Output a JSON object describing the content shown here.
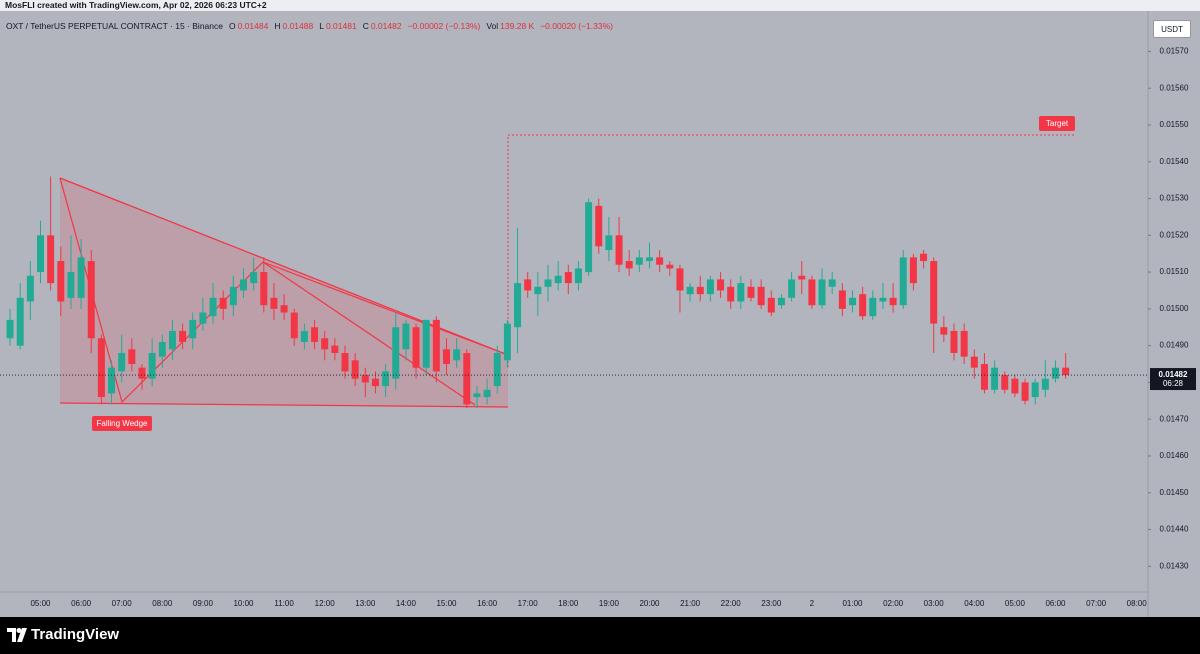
{
  "header": {
    "attribution": "MosFLI created with TradingView.com, Apr 02, 2026 06:23 UTC+2",
    "symbol": "OXT / TetherUS PERPETUAL CONTRACT · 15 · Binance",
    "open_key": "O",
    "open": "0.01484",
    "high_key": "H",
    "high": "0.01488",
    "low_key": "L",
    "low": "0.01481",
    "close_key": "C",
    "close": "0.01482",
    "change": "−0.00002 (−0.13%)",
    "volume_key": "Vol",
    "volume": "139.28 K",
    "volume_change": "−0.00020 (−1.33%)",
    "currency": "USDT",
    "countdown": "06:28"
  },
  "footer": {
    "brand": "TradingView"
  },
  "chart_data": {
    "type": "candlestick",
    "up_color": "#22ab94",
    "down_color": "#f23645",
    "annotations": [
      "Falling Wedge",
      "Target"
    ],
    "ylim": [
      0.01423,
      0.01581
    ],
    "yticks": [
      {
        "value": 0.0157,
        "label": "0.01570"
      },
      {
        "value": 0.0156,
        "label": "0.01560"
      },
      {
        "value": 0.0155,
        "label": "0.01550"
      },
      {
        "value": 0.0154,
        "label": "0.01540"
      },
      {
        "value": 0.0153,
        "label": "0.01530"
      },
      {
        "value": 0.0152,
        "label": "0.01520"
      },
      {
        "value": 0.0151,
        "label": "0.01510"
      },
      {
        "value": 0.015,
        "label": "0.01500"
      },
      {
        "value": 0.0149,
        "label": "0.01490"
      },
      {
        "value": 0.0148,
        "label": "0.01480"
      },
      {
        "value": 0.0147,
        "label": "0.01470"
      },
      {
        "value": 0.0146,
        "label": "0.01460"
      },
      {
        "value": 0.0145,
        "label": "0.01450"
      },
      {
        "value": 0.0144,
        "label": "0.01440"
      },
      {
        "value": 0.0143,
        "label": "0.01430"
      }
    ],
    "x_labels": [
      "05:00",
      "06:00",
      "07:00",
      "08:00",
      "09:00",
      "10:00",
      "11:00",
      "12:00",
      "13:00",
      "14:00",
      "15:00",
      "16:00",
      "17:00",
      "18:00",
      "19:00",
      "20:00",
      "21:00",
      "22:00",
      "23:00",
      "2",
      "01:00",
      "02:00",
      "03:00",
      "04:00",
      "05:00",
      "06:00",
      "07:00",
      "08:00"
    ],
    "ohlc": [
      [
        0.01492,
        0.015,
        0.0149,
        0.01497
      ],
      [
        0.0149,
        0.01507,
        0.01489,
        0.01503
      ],
      [
        0.01502,
        0.01513,
        0.01497,
        0.01509
      ],
      [
        0.0151,
        0.01524,
        0.01507,
        0.0152
      ],
      [
        0.0152,
        0.01536,
        0.01505,
        0.01507
      ],
      [
        0.01513,
        0.01517,
        0.01498,
        0.01502
      ],
      [
        0.01503,
        0.0152,
        0.015,
        0.0151
      ],
      [
        0.01503,
        0.01519,
        0.015,
        0.01514
      ],
      [
        0.01513,
        0.01516,
        0.01488,
        0.01492
      ],
      [
        0.01492,
        0.01493,
        0.01474,
        0.01476
      ],
      [
        0.01477,
        0.01486,
        0.01474,
        0.01484
      ],
      [
        0.01483,
        0.01493,
        0.0148,
        0.01488
      ],
      [
        0.01489,
        0.01492,
        0.01483,
        0.01485
      ],
      [
        0.01484,
        0.01485,
        0.01478,
        0.01481
      ],
      [
        0.01481,
        0.01492,
        0.01479,
        0.01488
      ],
      [
        0.01487,
        0.01493,
        0.01484,
        0.01491
      ],
      [
        0.01489,
        0.01497,
        0.01486,
        0.01494
      ],
      [
        0.01494,
        0.01496,
        0.01489,
        0.01491
      ],
      [
        0.01492,
        0.01499,
        0.01489,
        0.01497
      ],
      [
        0.01496,
        0.01503,
        0.01494,
        0.01499
      ],
      [
        0.01498,
        0.01507,
        0.01496,
        0.01503
      ],
      [
        0.01503,
        0.01505,
        0.01497,
        0.015
      ],
      [
        0.01501,
        0.01509,
        0.01498,
        0.01506
      ],
      [
        0.01505,
        0.01511,
        0.01503,
        0.01508
      ],
      [
        0.01507,
        0.01514,
        0.01505,
        0.0151
      ],
      [
        0.0151,
        0.01514,
        0.01499,
        0.01501
      ],
      [
        0.01503,
        0.01507,
        0.01497,
        0.015
      ],
      [
        0.01501,
        0.01504,
        0.01497,
        0.01499
      ],
      [
        0.01499,
        0.015,
        0.0149,
        0.01492
      ],
      [
        0.01491,
        0.01496,
        0.01489,
        0.01494
      ],
      [
        0.01495,
        0.01497,
        0.01489,
        0.01491
      ],
      [
        0.01492,
        0.01494,
        0.01486,
        0.01489
      ],
      [
        0.0149,
        0.01492,
        0.01486,
        0.01488
      ],
      [
        0.01488,
        0.0149,
        0.01481,
        0.01483
      ],
      [
        0.01486,
        0.01488,
        0.01479,
        0.01481
      ],
      [
        0.01482,
        0.01484,
        0.01476,
        0.0148
      ],
      [
        0.01481,
        0.01483,
        0.01477,
        0.01479
      ],
      [
        0.01479,
        0.01485,
        0.01476,
        0.01483
      ],
      [
        0.01481,
        0.01499,
        0.01478,
        0.01495
      ],
      [
        0.01489,
        0.01497,
        0.01486,
        0.01496
      ],
      [
        0.01495,
        0.01496,
        0.01481,
        0.01484
      ],
      [
        0.01484,
        0.01497,
        0.01482,
        0.01497
      ],
      [
        0.01497,
        0.01498,
        0.0148,
        0.01483
      ],
      [
        0.01489,
        0.01492,
        0.01482,
        0.01485
      ],
      [
        0.01486,
        0.01492,
        0.01484,
        0.01489
      ],
      [
        0.01488,
        0.01489,
        0.01473,
        0.01474
      ],
      [
        0.01476,
        0.01479,
        0.01473,
        0.01477
      ],
      [
        0.01476,
        0.01481,
        0.01474,
        0.01478
      ],
      [
        0.01479,
        0.0149,
        0.01477,
        0.01488
      ],
      [
        0.01486,
        0.01497,
        0.01484,
        0.01496
      ],
      [
        0.01495,
        0.01522,
        0.01488,
        0.01507
      ],
      [
        0.01508,
        0.0151,
        0.01503,
        0.01505
      ],
      [
        0.01504,
        0.0151,
        0.01498,
        0.01506
      ],
      [
        0.01506,
        0.01512,
        0.01502,
        0.01508
      ],
      [
        0.01507,
        0.01513,
        0.01505,
        0.01509
      ],
      [
        0.0151,
        0.01512,
        0.01504,
        0.01507
      ],
      [
        0.01507,
        0.01513,
        0.01505,
        0.01511
      ],
      [
        0.0151,
        0.0153,
        0.01509,
        0.01529
      ],
      [
        0.01528,
        0.0153,
        0.01515,
        0.01517
      ],
      [
        0.01516,
        0.01525,
        0.01513,
        0.0152
      ],
      [
        0.0152,
        0.01525,
        0.0151,
        0.01512
      ],
      [
        0.01513,
        0.01516,
        0.01509,
        0.01511
      ],
      [
        0.01512,
        0.01516,
        0.0151,
        0.01514
      ],
      [
        0.01513,
        0.01518,
        0.01511,
        0.01514
      ],
      [
        0.01514,
        0.01516,
        0.0151,
        0.01512
      ],
      [
        0.01512,
        0.01513,
        0.01509,
        0.01511
      ],
      [
        0.01511,
        0.01512,
        0.01499,
        0.01505
      ],
      [
        0.01504,
        0.01507,
        0.01502,
        0.01506
      ],
      [
        0.01506,
        0.01509,
        0.01502,
        0.01504
      ],
      [
        0.01504,
        0.01509,
        0.01502,
        0.01508
      ],
      [
        0.01508,
        0.0151,
        0.01503,
        0.01505
      ],
      [
        0.01506,
        0.01508,
        0.015,
        0.01502
      ],
      [
        0.01502,
        0.01509,
        0.015,
        0.01507
      ],
      [
        0.01506,
        0.01508,
        0.01502,
        0.01503
      ],
      [
        0.01506,
        0.01508,
        0.015,
        0.01501
      ],
      [
        0.01503,
        0.01505,
        0.01498,
        0.01499
      ],
      [
        0.01501,
        0.01504,
        0.015,
        0.01503
      ],
      [
        0.01503,
        0.0151,
        0.01502,
        0.01508
      ],
      [
        0.01509,
        0.01513,
        0.01504,
        0.01508
      ],
      [
        0.01508,
        0.01509,
        0.015,
        0.01501
      ],
      [
        0.01501,
        0.01511,
        0.015,
        0.01508
      ],
      [
        0.01506,
        0.0151,
        0.01504,
        0.01508
      ],
      [
        0.01505,
        0.01507,
        0.01498,
        0.015
      ],
      [
        0.01501,
        0.01505,
        0.01499,
        0.01503
      ],
      [
        0.01504,
        0.01506,
        0.01497,
        0.01498
      ],
      [
        0.01498,
        0.01505,
        0.01497,
        0.01503
      ],
      [
        0.01502,
        0.01507,
        0.015,
        0.01503
      ],
      [
        0.01503,
        0.01507,
        0.01499,
        0.01501
      ],
      [
        0.01501,
        0.01516,
        0.015,
        0.01514
      ],
      [
        0.01514,
        0.01515,
        0.01505,
        0.01507
      ],
      [
        0.01515,
        0.01516,
        0.01511,
        0.01513
      ],
      [
        0.01513,
        0.01514,
        0.01488,
        0.01496
      ],
      [
        0.01495,
        0.01498,
        0.01491,
        0.01493
      ],
      [
        0.01494,
        0.01496,
        0.01486,
        0.01488
      ],
      [
        0.01494,
        0.01496,
        0.01485,
        0.01487
      ],
      [
        0.01487,
        0.01489,
        0.01481,
        0.01484
      ],
      [
        0.01485,
        0.01488,
        0.01477,
        0.01478
      ],
      [
        0.01478,
        0.01486,
        0.01477,
        0.01484
      ],
      [
        0.01482,
        0.01483,
        0.01477,
        0.01478
      ],
      [
        0.01481,
        0.01482,
        0.01476,
        0.01477
      ],
      [
        0.0148,
        0.01481,
        0.01474,
        0.01475
      ],
      [
        0.01476,
        0.01481,
        0.01474,
        0.0148
      ],
      [
        0.01478,
        0.01486,
        0.01476,
        0.01481
      ],
      [
        0.01481,
        0.01486,
        0.0148,
        0.01484
      ],
      [
        0.01484,
        0.01488,
        0.01481,
        0.01482
      ]
    ]
  }
}
